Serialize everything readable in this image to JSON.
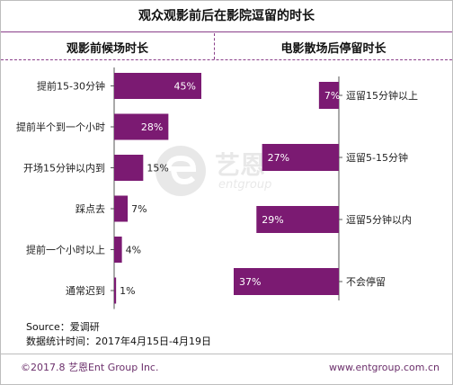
{
  "title": "观众观影前后在影院逗留的时长",
  "left_panel_title": "观影前候场时长",
  "right_panel_title": "电影散场后停留时长",
  "source": "Source：爱调研",
  "date_range": "数据统计时间：2017年4月15日-4月19日",
  "footer_left": "©2017.8 艺恩Ent Group Inc.",
  "footer_right": "www.entgroup.com.cn",
  "watermark": {
    "name": "艺恩",
    "sub": "entgroup"
  },
  "colors": {
    "bar": "#7b1a72",
    "accent": "#8a3f8a",
    "label_outside": "#222222",
    "label_inside": "#ffffff"
  },
  "chart_data": [
    {
      "type": "bar",
      "orientation": "horizontal",
      "title": "观影前候场时长",
      "categories": [
        "提前15-30分钟",
        "提前半个到一个小时",
        "开场15分钟以内到",
        "踩点去",
        "提前一个小时以上",
        "通常迟到"
      ],
      "values": [
        45,
        28,
        15,
        7,
        4,
        1
      ],
      "labels": [
        "45%",
        "28%",
        "15%",
        "7%",
        "4%",
        "1%"
      ],
      "unit": "%",
      "xlim": [
        0,
        45
      ]
    },
    {
      "type": "bar",
      "orientation": "horizontal",
      "direction": "right-to-left",
      "title": "电影散场后停留时长",
      "categories": [
        "逗留15分钟以上",
        "逗留5-15分钟",
        "逗留5分钟以内",
        "不会停留"
      ],
      "values": [
        7,
        27,
        29,
        37
      ],
      "labels": [
        "7%",
        "27%",
        "29%",
        "37%"
      ],
      "unit": "%",
      "xlim": [
        0,
        37
      ]
    }
  ]
}
